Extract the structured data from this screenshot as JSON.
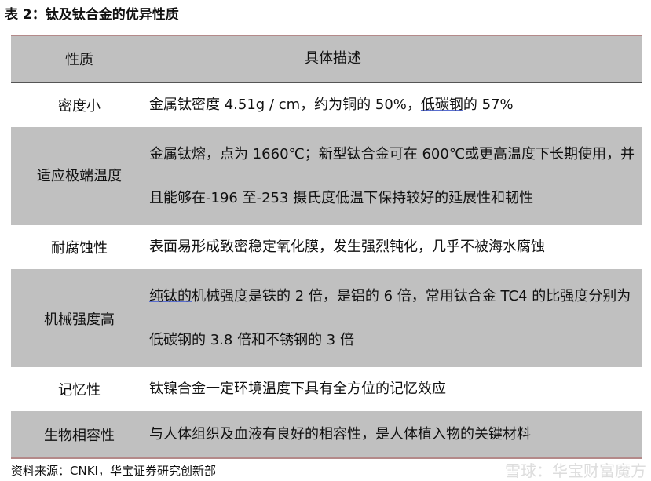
{
  "title": "表 2：钛及钛合金的优异性质",
  "headers": [
    "性质",
    "具体描述"
  ],
  "rows": [
    {
      "prop": "密度小",
      "desc": [
        "金属钛密度 4.51g / cm，约为铜的 50%，",
        "低碳钢",
        "的 57%"
      ]
    },
    {
      "prop": "适应极端温度",
      "desc": [
        "金属钛熔，点为 1660℃；新型钛合金可在 600℃或更高温度下长期使用，并且能够在-196 至-253 摄氏度低温下保持较好的延展性和韧性"
      ]
    },
    {
      "prop": "耐腐蚀性",
      "desc": [
        "表面易形成致密稳定氧化膜，发生强烈钝化，几乎不被海水腐蚀"
      ]
    },
    {
      "prop": "机械强度高",
      "desc": [
        "纯钛的",
        "机械强度是铁的 2 倍，是铝的 6 倍，常用钛合金 TC4 的比强度分别为低碳钢的 3.8 倍和不锈钢的 3 倍"
      ]
    },
    {
      "prop": "记忆性",
      "desc": [
        "钛镍合金一定环境温度下具有全方位的记忆效应"
      ]
    },
    {
      "prop": "生物相容性",
      "desc": [
        "与人体组织及血液有良好的相容性，是人体植入物的关键材料"
      ]
    }
  ],
  "source": "资料来源：CNKI，华宝证券研究创新部",
  "watermark": "雪球：华宝财富魔方"
}
